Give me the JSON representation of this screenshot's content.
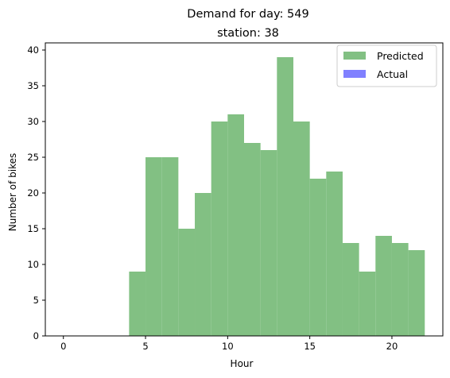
{
  "chart_data": {
    "type": "bar",
    "title": "Demand for day: 549",
    "subtitle": "station: 38",
    "xlabel": "Hour",
    "ylabel": "Number of bikes",
    "xlim": [
      -1.1,
      23.1
    ],
    "ylim": [
      0,
      41
    ],
    "xticks": [
      0,
      5,
      10,
      15,
      20
    ],
    "yticks": [
      0,
      5,
      10,
      15,
      20,
      25,
      30,
      35,
      40
    ],
    "grid": false,
    "legend": "top-right",
    "series": [
      {
        "name": "Predicted",
        "color": "#82c083",
        "bins": [
          {
            "x0": 4,
            "x1": 5,
            "value": 9
          },
          {
            "x0": 5,
            "x1": 6,
            "value": 25
          },
          {
            "x0": 6,
            "x1": 7,
            "value": 25
          },
          {
            "x0": 7,
            "x1": 8,
            "value": 15
          },
          {
            "x0": 8,
            "x1": 9,
            "value": 20
          },
          {
            "x0": 9,
            "x1": 10,
            "value": 30
          },
          {
            "x0": 10,
            "x1": 11,
            "value": 31
          },
          {
            "x0": 11,
            "x1": 12,
            "value": 27
          },
          {
            "x0": 12,
            "x1": 13,
            "value": 26
          },
          {
            "x0": 13,
            "x1": 14,
            "value": 39
          },
          {
            "x0": 14,
            "x1": 15,
            "value": 30
          },
          {
            "x0": 15,
            "x1": 16,
            "value": 22
          },
          {
            "x0": 16,
            "x1": 17,
            "value": 23
          },
          {
            "x0": 17,
            "x1": 18,
            "value": 13
          },
          {
            "x0": 18,
            "x1": 19,
            "value": 9
          },
          {
            "x0": 19,
            "x1": 20,
            "value": 14
          },
          {
            "x0": 20,
            "x1": 21,
            "value": 13
          },
          {
            "x0": 21,
            "x1": 22,
            "value": 12
          }
        ]
      },
      {
        "name": "Actual",
        "color": "#8080ff",
        "bins": []
      }
    ]
  }
}
